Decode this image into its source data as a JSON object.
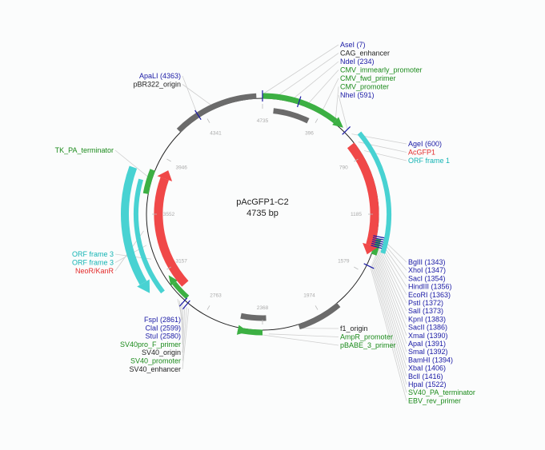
{
  "plasmid": {
    "name": "pAcGFP1-C2",
    "length_label": "4735 bp",
    "length_bp": 4735
  },
  "colors": {
    "enzyme": "#1a1aa6",
    "feature": "#1a8a1a",
    "gene": "#e32b2b",
    "orf": "#14b4b4",
    "dark": "#222222",
    "green_bar": "#3cb043",
    "gray_bar": "#6b6b6b",
    "red_bar": "#f04848",
    "cyan_bar": "#48d2d2"
  },
  "ticks": [
    "4735",
    "396",
    "790",
    "1185",
    "1579",
    "1974",
    "2368",
    "2763",
    "3157",
    "3552",
    "3946",
    "4341"
  ],
  "labels": {
    "top_right": [
      {
        "text": "AseI (7)",
        "kind": "enzyme"
      },
      {
        "text": "CAG_enhancer",
        "kind": "dark"
      },
      {
        "text": "NdeI (234)",
        "kind": "enzyme"
      },
      {
        "text": "CMV_immearly_promoter",
        "kind": "feature"
      },
      {
        "text": "CMV_fwd_primer",
        "kind": "feature"
      },
      {
        "text": "CMV_promoter",
        "kind": "feature"
      },
      {
        "text": "NheI (591)",
        "kind": "enzyme"
      }
    ],
    "right_upper": [
      {
        "text": "AgeI (600)",
        "kind": "enzyme"
      },
      {
        "text": "AcGFP1",
        "kind": "gene"
      },
      {
        "text": "ORF frame 1",
        "kind": "orf"
      }
    ],
    "right_lower": [
      {
        "text": "BglII (1343)",
        "kind": "enzyme"
      },
      {
        "text": "XhoI (1347)",
        "kind": "enzyme"
      },
      {
        "text": "SacI (1354)",
        "kind": "enzyme"
      },
      {
        "text": "HindIII (1356)",
        "kind": "enzyme"
      },
      {
        "text": "EcoRI (1363)",
        "kind": "enzyme"
      },
      {
        "text": "PstI (1372)",
        "kind": "enzyme"
      },
      {
        "text": "SalI (1373)",
        "kind": "enzyme"
      },
      {
        "text": "KpnI (1383)",
        "kind": "enzyme"
      },
      {
        "text": "SacII (1386)",
        "kind": "enzyme"
      },
      {
        "text": "XmaI (1390)",
        "kind": "enzyme"
      },
      {
        "text": "ApaI (1391)",
        "kind": "enzyme"
      },
      {
        "text": "SmaI (1392)",
        "kind": "enzyme"
      },
      {
        "text": "BamHI (1394)",
        "kind": "enzyme"
      },
      {
        "text": "XbaI (1406)",
        "kind": "enzyme"
      },
      {
        "text": "BclI (1416)",
        "kind": "enzyme"
      },
      {
        "text": "HpaI (1522)",
        "kind": "enzyme"
      },
      {
        "text": "SV40_PA_terminator",
        "kind": "feature"
      },
      {
        "text": "EBV_rev_primer",
        "kind": "feature"
      }
    ],
    "bottom_mid": [
      {
        "text": "f1_origin",
        "kind": "dark"
      },
      {
        "text": "AmpR_promoter",
        "kind": "feature"
      },
      {
        "text": "pBABE_3_primer",
        "kind": "feature"
      }
    ],
    "bottom_left": [
      {
        "text": "FspI (2861)",
        "kind": "enzyme"
      },
      {
        "text": "ClaI (2599)",
        "kind": "enzyme"
      },
      {
        "text": "StuI (2580)",
        "kind": "enzyme"
      },
      {
        "text": "SV40pro_F_primer",
        "kind": "feature"
      },
      {
        "text": "SV40_origin",
        "kind": "dark"
      },
      {
        "text": "SV40_promoter",
        "kind": "feature"
      },
      {
        "text": "SV40_enhancer",
        "kind": "dark"
      }
    ],
    "left_mid": [
      {
        "text": "ORF frame 3",
        "kind": "orf"
      },
      {
        "text": "ORF frame 3",
        "kind": "orf"
      },
      {
        "text": "NeoR/KanR",
        "kind": "gene"
      }
    ],
    "left_upper": [
      {
        "text": "TK_PA_terminator",
        "kind": "feature"
      }
    ],
    "top_left": [
      {
        "text": "ApaLI (4363)",
        "kind": "enzyme"
      },
      {
        "text": "pBR322_origin",
        "kind": "dark"
      }
    ]
  }
}
